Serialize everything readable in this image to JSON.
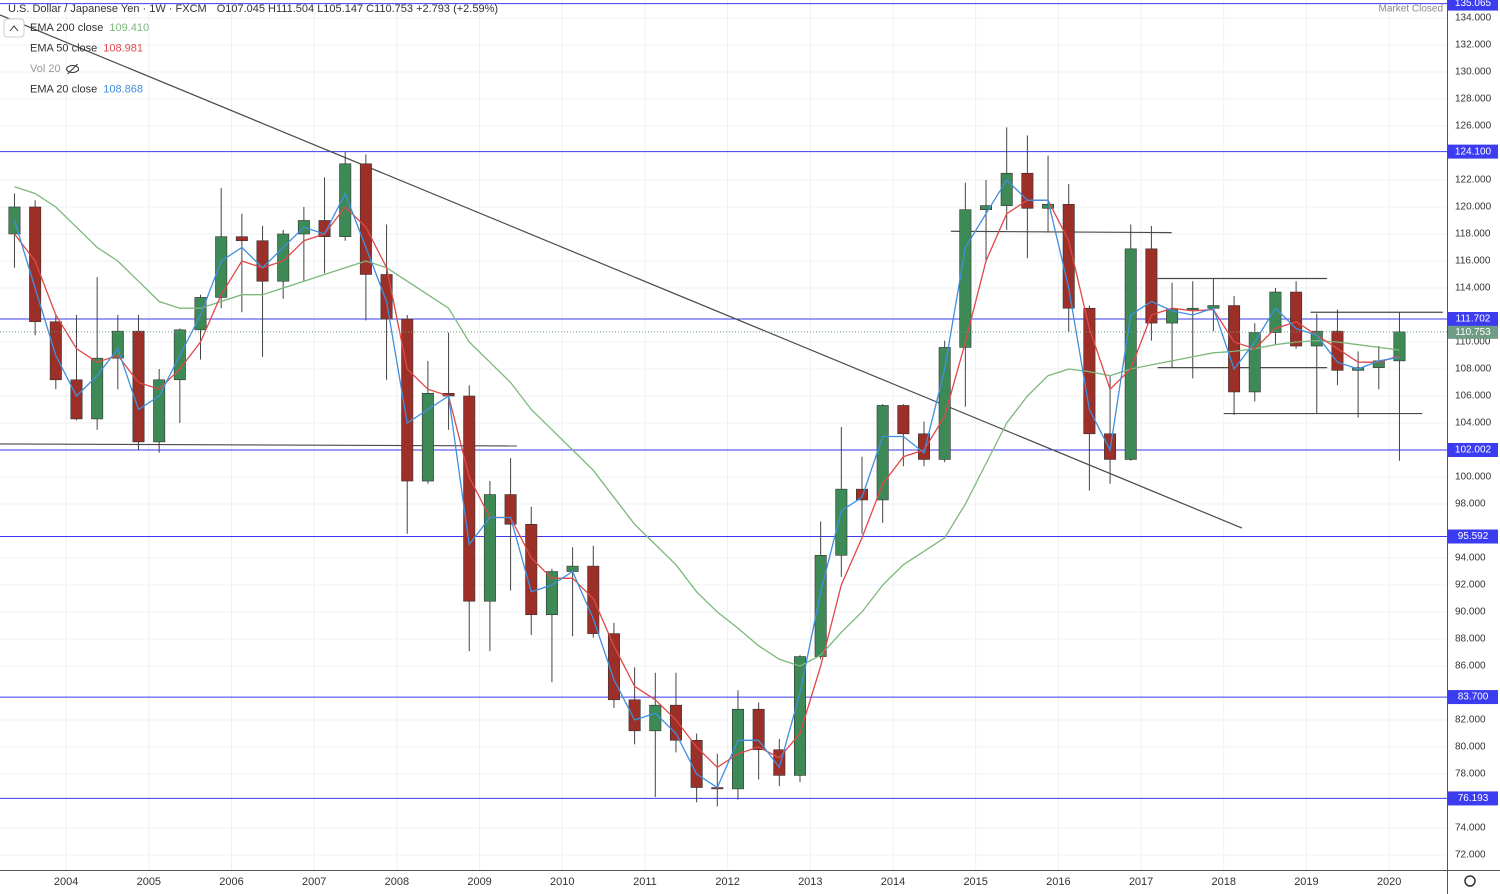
{
  "chart_data": {
    "type": "candlestick",
    "title": "U.S. Dollar / Japanese Yen · 1W · FXCM",
    "ohlc_text": "O107.045 H111.504 L105.147 C110.753 +2.793 (+2.59%)",
    "status": "Market Closed",
    "x": [
      2003.375,
      2003.625,
      2003.875,
      2004.125,
      2004.375,
      2004.625,
      2004.875,
      2005.125,
      2005.375,
      2005.625,
      2005.875,
      2006.125,
      2006.375,
      2006.625,
      2006.875,
      2007.125,
      2007.375,
      2007.625,
      2007.875,
      2008.125,
      2008.375,
      2008.625,
      2008.875,
      2009.125,
      2009.375,
      2009.625,
      2009.875,
      2010.125,
      2010.375,
      2010.625,
      2010.875,
      2011.125,
      2011.375,
      2011.625,
      2011.875,
      2012.125,
      2012.375,
      2012.625,
      2012.875,
      2013.125,
      2013.375,
      2013.625,
      2013.875,
      2014.125,
      2014.375,
      2014.625,
      2014.875,
      2015.125,
      2015.375,
      2015.625,
      2015.875,
      2016.125,
      2016.375,
      2016.625,
      2016.875,
      2017.125,
      2017.375,
      2017.625,
      2017.875,
      2018.125,
      2018.375,
      2018.625,
      2018.875,
      2019.125,
      2019.375,
      2019.625,
      2019.875,
      2020.125
    ],
    "open": [
      118,
      120,
      111.5,
      107.2,
      104.3,
      108.8,
      110.8,
      102.6,
      107.2,
      110.9,
      113.3,
      117.8,
      117.5,
      114.5,
      118,
      119,
      117.8,
      123.2,
      115,
      111.7,
      99.7,
      106.2,
      106,
      90.8,
      98.7,
      96.5,
      89.8,
      93,
      93.4,
      88.4,
      83.5,
      81.2,
      83.1,
      80.5,
      77,
      76.9,
      82.8,
      79.8,
      77.9,
      86.7,
      94.2,
      99.1,
      98.3,
      105.3,
      103.2,
      101.3,
      109.6,
      119.8,
      120.1,
      122.5,
      119.9,
      120.2,
      112.5,
      103.2,
      101.3,
      116.9,
      111.4,
      112.4,
      112.5,
      112.7,
      106.3,
      110.7,
      113.7,
      109.7,
      110.8,
      107.9,
      108.1,
      108.6
    ],
    "high": [
      121,
      120.5,
      112,
      112,
      114.8,
      112,
      112,
      108,
      111,
      113.5,
      121.4,
      119.5,
      118.6,
      118.3,
      120,
      122.2,
      124.1,
      123.9,
      118.7,
      112,
      108.6,
      110.7,
      106.8,
      99.7,
      101.4,
      97.8,
      93.2,
      94.8,
      94.9,
      89.2,
      85.9,
      85.5,
      85.5,
      81,
      79.5,
      84.2,
      83.3,
      80.6,
      86.8,
      96.7,
      103.7,
      101.5,
      105.4,
      105.4,
      104.1,
      110.1,
      121.8,
      122,
      125.9,
      125.3,
      123.8,
      121.7,
      112.7,
      107.5,
      118.7,
      118.6,
      114.4,
      114.5,
      114.7,
      113.4,
      111.4,
      114,
      114.5,
      112.1,
      112.4,
      109.3,
      109.7,
      112.2
    ],
    "low": [
      115.5,
      110.5,
      106.5,
      104.2,
      103.5,
      106.5,
      102,
      101.8,
      104,
      108.7,
      112.5,
      112.2,
      108.9,
      113.2,
      114.5,
      115.1,
      117.5,
      111.6,
      107.2,
      95.8,
      99.5,
      103.5,
      87.1,
      87.1,
      91.6,
      88.3,
      84.8,
      88.2,
      88.1,
      82.9,
      80.2,
      76.3,
      79.6,
      75.9,
      75.6,
      76.1,
      77.6,
      77.1,
      77.4,
      86.5,
      92.6,
      95.8,
      96.6,
      100.8,
      100.8,
      101.1,
      105.2,
      115.9,
      118.3,
      116.2,
      118.1,
      110.7,
      99,
      99.5,
      101.2,
      110.1,
      108.1,
      107.3,
      110.8,
      104.6,
      105.6,
      109.8,
      109.5,
      104.7,
      106.8,
      104.4,
      106.5,
      101.2
    ],
    "close": [
      120,
      111.5,
      107.2,
      104.3,
      108.8,
      110.8,
      102.6,
      107.2,
      110.9,
      113.3,
      117.8,
      117.5,
      114.5,
      118,
      119,
      117.8,
      123.2,
      115,
      111.7,
      99.7,
      106.2,
      106,
      90.8,
      98.7,
      96.5,
      89.8,
      93,
      93.4,
      88.4,
      83.5,
      81.2,
      83.1,
      80.5,
      77,
      76.9,
      82.8,
      79.8,
      77.9,
      86.7,
      94.2,
      99.1,
      98.3,
      105.3,
      103.2,
      101.3,
      109.6,
      119.8,
      120.1,
      122.5,
      119.9,
      120.2,
      112.5,
      103.2,
      101.3,
      116.9,
      111.4,
      112.4,
      112.5,
      112.7,
      106.3,
      110.7,
      113.7,
      109.7,
      110.8,
      107.9,
      108.1,
      108.6,
      110.753
    ],
    "up_color": "#3e8a57",
    "down_color": "#9c2f27",
    "series": [
      {
        "name": "EMA 200 close",
        "color": "#7cb87a",
        "last": {
          "value": 109.41,
          "label": "109.410"
        },
        "values": [
          121.5,
          121,
          120,
          118.5,
          117,
          116,
          114.5,
          113,
          112.5,
          112.5,
          113,
          113.5,
          113.5,
          114,
          114.5,
          115,
          115.5,
          116,
          115.5,
          114.5,
          113.5,
          112.5,
          110,
          108.5,
          107,
          105,
          103.5,
          102,
          100.5,
          98.5,
          96.5,
          95,
          93.5,
          91.5,
          90,
          88.8,
          87.5,
          86.5,
          86,
          86.8,
          88.5,
          90,
          92,
          93.5,
          94.5,
          95.5,
          98,
          101,
          104,
          106,
          107.5,
          108,
          107.8,
          107.5,
          108,
          108.3,
          108.6,
          108.9,
          109.2,
          109.3,
          109.5,
          109.8,
          110,
          110.1,
          110,
          109.8,
          109.6,
          109.41
        ]
      },
      {
        "name": "EMA 50 close",
        "color": "#e04848",
        "last": {
          "value": 108.981,
          "label": "108.981"
        },
        "values": [
          118,
          116,
          112,
          109.5,
          108.5,
          109,
          107,
          106.5,
          108,
          110,
          113.5,
          116,
          115.5,
          116,
          117.5,
          118,
          120,
          118.5,
          115.5,
          108,
          106.5,
          106,
          100,
          97,
          97,
          94,
          92.5,
          92.5,
          91,
          87.5,
          84.5,
          83.5,
          82,
          80,
          78.5,
          79.5,
          80,
          79.2,
          81,
          86,
          92,
          95.5,
          99.5,
          101.5,
          102,
          104.5,
          110,
          116,
          119.5,
          120.5,
          120.5,
          117.5,
          111,
          106.5,
          108,
          112,
          112.5,
          112.3,
          112.4,
          110,
          109.5,
          111,
          111.5,
          110.5,
          109.5,
          108.5,
          108.5,
          108.981
        ]
      },
      {
        "name": "Vol 20",
        "hidden": true
      },
      {
        "name": "EMA 20 close",
        "color": "#3f8fe0",
        "last": {
          "value": 108.868,
          "label": "108.868"
        },
        "values": [
          119,
          114,
          109,
          106,
          107.5,
          109.5,
          105,
          106,
          109,
          112,
          116,
          117,
          115.5,
          117,
          118.5,
          118,
          121,
          117,
          113,
          104,
          105,
          106,
          95,
          97,
          97,
          91.5,
          92,
          93,
          89.5,
          85,
          82,
          82.5,
          81,
          78,
          77,
          80.5,
          80.5,
          78.5,
          84,
          91.5,
          97.5,
          98.5,
          103,
          103,
          101.8,
          108,
          117,
          119.5,
          122,
          120.5,
          120.5,
          114,
          105,
          102,
          112,
          113,
          112.3,
          112,
          112.5,
          108,
          110,
          112.5,
          111,
          110.5,
          108.5,
          108,
          108.6,
          108.868
        ]
      }
    ],
    "levels": [
      {
        "value": 135.065,
        "label": "135.065"
      },
      {
        "value": 124.1,
        "label": "124.100"
      },
      {
        "value": 111.702,
        "label": "111.702"
      },
      {
        "value": 102.002,
        "label": "102.002"
      },
      {
        "value": 95.592,
        "label": "95.592"
      },
      {
        "value": 83.7,
        "label": "83.700"
      },
      {
        "value": 76.193,
        "label": "76.193"
      }
    ],
    "level_color": "#3b3bf0",
    "last_price": {
      "value": 110.753,
      "label": "110.753"
    },
    "last_price_color": "#6e9c84",
    "trendlines": [
      {
        "x": [
          2003.2,
          2018.22
        ],
        "y": [
          134.22,
          96.22
        ]
      },
      {
        "x": [
          2003.2,
          2009.45
        ],
        "y": [
          102.45,
          102.3
        ]
      },
      {
        "x": [
          2014.7,
          2017.37
        ],
        "y": [
          118.2,
          118.1
        ]
      },
      {
        "x": [
          2017.2,
          2019.25
        ],
        "y": [
          114.7,
          114.7
        ]
      },
      {
        "x": [
          2017.2,
          2019.25
        ],
        "y": [
          108.1,
          108.1
        ]
      },
      {
        "x": [
          2018.0,
          2020.4
        ],
        "y": [
          104.7,
          104.7
        ]
      },
      {
        "x": [
          2019.05,
          2020.65
        ],
        "y": [
          112.2,
          112.2
        ]
      }
    ],
    "trendline_color": "#4a4a4a",
    "xlim": [
      2003.2,
      2020.7
    ],
    "ylim": [
      71.04,
      135.33
    ],
    "xticks": [
      2004,
      2005,
      2006,
      2007,
      2008,
      2009,
      2010,
      2011,
      2012,
      2013,
      2014,
      2015,
      2016,
      2017,
      2018,
      2019,
      2020
    ],
    "yticks": [
      {
        "value": 72,
        "label": "72.000"
      },
      {
        "value": 74,
        "label": "74.000"
      },
      {
        "value": 78,
        "label": "78.000"
      },
      {
        "value": 80,
        "label": "80.000"
      },
      {
        "value": 82,
        "label": "82.000"
      },
      {
        "value": 86,
        "label": "86.000"
      },
      {
        "value": 88,
        "label": "88.000"
      },
      {
        "value": 90,
        "label": "90.000"
      },
      {
        "value": 92,
        "label": "92.000"
      },
      {
        "value": 94,
        "label": "94.000"
      },
      {
        "value": 98,
        "label": "98.000"
      },
      {
        "value": 100,
        "label": "100.000"
      },
      {
        "value": 104,
        "label": "104.000"
      },
      {
        "value": 106,
        "label": "106.000"
      },
      {
        "value": 108,
        "label": "108.000"
      },
      {
        "value": 110,
        "label": "110.000"
      },
      {
        "value": 114,
        "label": "114.000"
      },
      {
        "value": 116,
        "label": "116.000"
      },
      {
        "value": 118,
        "label": "118.000"
      },
      {
        "value": 120,
        "label": "120.000"
      },
      {
        "value": 122,
        "label": "122.000"
      },
      {
        "value": 126,
        "label": "126.000"
      },
      {
        "value": 128,
        "label": "128.000"
      },
      {
        "value": 130,
        "label": "130.000"
      },
      {
        "value": 132,
        "label": "132.000"
      },
      {
        "value": 134,
        "label": "134.000"
      }
    ],
    "grid": true
  }
}
